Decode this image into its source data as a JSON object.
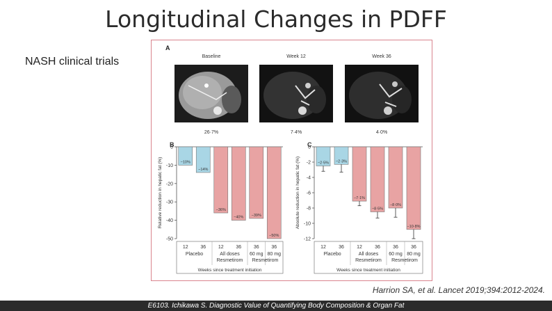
{
  "slide": {
    "title": "Longitudinal Changes in PDFF",
    "subtitle": "NASH clinical trials",
    "citation": "Harrion SA, et al. Lancet 2019;394:2012-2024.",
    "footer": "E6103. Ichikawa S. Diagnostic Value of Quantifying  Body Composition & Organ Fat"
  },
  "panel_a": {
    "letter": "A",
    "images": [
      {
        "label": "Baseline",
        "value": "26·7%",
        "tone": "#8a8a8a"
      },
      {
        "label": "Week 12",
        "value": "7·4%",
        "tone": "#3a3a3a"
      },
      {
        "label": "Week 36",
        "value": "4·0%",
        "tone": "#333333"
      }
    ]
  },
  "chart_data": [
    {
      "panel": "B",
      "type": "bar",
      "ylabel": "Relative reduction in hepatic fat (%)",
      "xlabel": "Weeks since treatment initiation",
      "ylim": [
        -50,
        0
      ],
      "yticks": [
        "0",
        "-10",
        "-20",
        "-30",
        "-40",
        "-50"
      ],
      "ytick_values": [
        0,
        -10,
        -20,
        -30,
        -40,
        -50
      ],
      "categories": [
        "12",
        "36",
        "12",
        "36",
        "36",
        "36"
      ],
      "groups": [
        {
          "name": "Placebo",
          "line2": ""
        },
        {
          "name": "All doses",
          "line2": "Resmetirom"
        },
        {
          "name": "60 mg",
          "line2": "Resmetirom"
        },
        {
          "name": "80 mg",
          "line2": ""
        }
      ],
      "group_index": [
        0,
        0,
        1,
        1,
        2,
        3
      ],
      "values": [
        -10,
        -14,
        -36,
        -40,
        -39,
        -50
      ],
      "value_labels": [
        "−10%",
        "−14%",
        "−36%",
        "−40%",
        "−39%",
        "−50%"
      ],
      "colors": [
        "#a9d6e5",
        "#a9d6e5",
        "#e8a3a3",
        "#e8a3a3",
        "#e8a3a3",
        "#e8a3a3"
      ]
    },
    {
      "panel": "C",
      "type": "bar",
      "ylabel": "Absolute reduction in hepatic fat (%)",
      "xlabel": "Weeks since treatment initiation",
      "ylim": [
        -12,
        0
      ],
      "yticks": [
        "0",
        "-2",
        "-4",
        "-6",
        "-8",
        "-10",
        "-12"
      ],
      "ytick_values": [
        0,
        -2,
        -4,
        -6,
        -8,
        -10,
        -12
      ],
      "categories": [
        "12",
        "36",
        "12",
        "36",
        "36",
        "36"
      ],
      "groups": [
        {
          "name": "Placebo",
          "line2": ""
        },
        {
          "name": "All doses",
          "line2": "Resmetirom"
        },
        {
          "name": "60 mg",
          "line2": "Resmetirom"
        },
        {
          "name": "80 mg",
          "line2": ""
        }
      ],
      "group_index": [
        0,
        0,
        1,
        1,
        2,
        3
      ],
      "values": [
        -2.5,
        -2.3,
        -7.1,
        -8.5,
        -8.0,
        -10.8
      ],
      "errors": [
        0.7,
        1.0,
        0.6,
        0.8,
        1.2,
        1.2
      ],
      "value_labels": [
        "−2·5%",
        "−2·3%",
        "−7·1%",
        "−8·5%",
        "−8·0%",
        "−10·8%"
      ],
      "colors": [
        "#a9d6e5",
        "#a9d6e5",
        "#e8a3a3",
        "#e8a3a3",
        "#e8a3a3",
        "#e8a3a3"
      ]
    }
  ]
}
